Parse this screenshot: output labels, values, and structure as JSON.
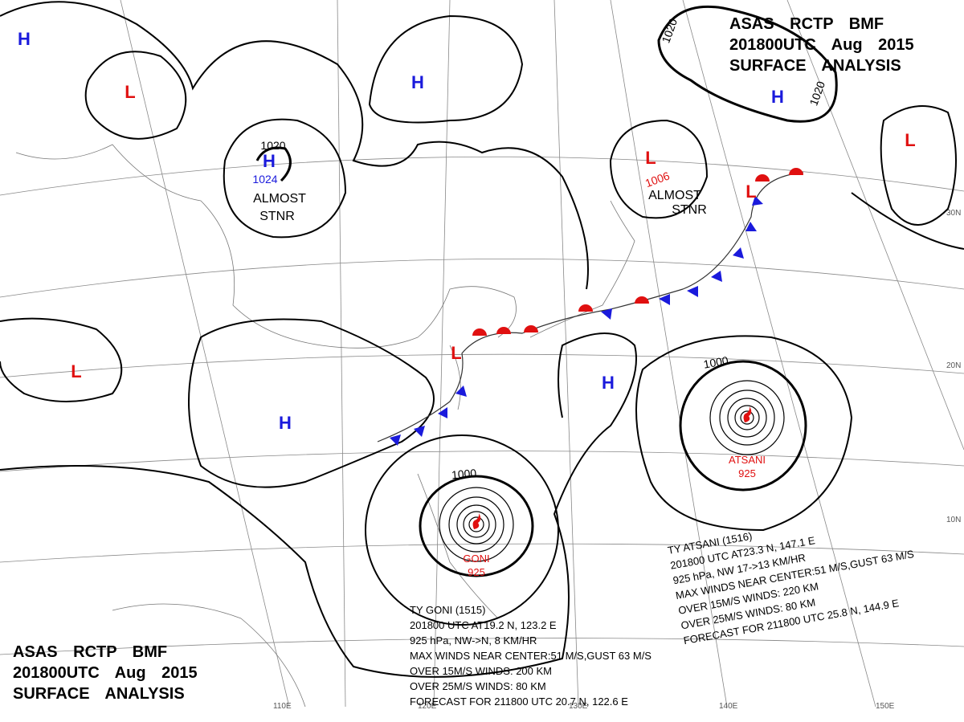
{
  "title_top": [
    "ASAS    RCTP    BMF",
    "201800UTC    Aug    2015",
    "SURFACE  ANALYSIS"
  ],
  "title_bottom": [
    "ASAS    RCTP    BMF",
    "201800UTC    Aug    2015",
    "SURFACE  ANALYSIS"
  ],
  "pressure_centers": [
    {
      "label": "H",
      "color": "#1a1adc"
    },
    {
      "label": "L",
      "color": "#e01010"
    },
    {
      "label": "H",
      "color": "#1a1adc"
    },
    {
      "label": "H",
      "color": "#1a1adc"
    },
    {
      "label": "L",
      "color": "#e01010"
    },
    {
      "label": "H",
      "color": "#1a1adc"
    },
    {
      "label": "L",
      "color": "#e01010"
    },
    {
      "label": "L",
      "color": "#e01010"
    },
    {
      "label": "L",
      "color": "#e01010"
    },
    {
      "label": "H",
      "color": "#1a1adc"
    },
    {
      "label": "L",
      "color": "#e01010"
    },
    {
      "label": "H",
      "color": "#1a1adc"
    }
  ],
  "isobar_labels": [
    {
      "label": "1020",
      "color": "#000"
    },
    {
      "label": "1024",
      "color": "#1a1adc"
    },
    {
      "label": "1006",
      "color": "#e01010"
    },
    {
      "label": "1020",
      "color": "#000"
    },
    {
      "label": "1020",
      "color": "#000"
    },
    {
      "label": "1000",
      "color": "#000"
    },
    {
      "label": "1000",
      "color": "#000"
    }
  ],
  "notes": [
    "ALMOST",
    "STNR",
    "ALMOST",
    "STNR"
  ],
  "latitude_labels": [
    "30N",
    "20N",
    "10N"
  ],
  "longitude_labels": [
    "110E",
    "120E",
    "130E",
    "140E",
    "150E"
  ],
  "typhoons": [
    {
      "name": "GONI",
      "pressure": "925",
      "info": [
        "TY  GONI  (1515)",
        "201800 UTC  AT19.2 N, 123.2 E",
        "925 hPa, NW->N, 8 KM/HR",
        "MAX WINDS NEAR CENTER:51 M/S,GUST 63 M/S",
        "OVER 15M/S WINDS: 200 KM",
        "OVER 25M/S WINDS: 80 KM",
        "FORECAST FOR 211800 UTC 20.7 N, 122.6 E"
      ]
    },
    {
      "name": "ATSANI",
      "pressure": "925",
      "info": [
        "TY  ATSANI  (1516)",
        "201800 UTC  AT23.3 N, 147.1 E",
        "925 hPa, NW  17->13 KM/HR",
        "MAX WINDS NEAR CENTER:51 M/S,GUST 63 M/S",
        "OVER 15M/S WINDS: 220 KM",
        "OVER 25M/S WINDS: 80 KM",
        "FORECAST FOR 211800 UTC 25.8 N, 144.9 E"
      ]
    }
  ]
}
